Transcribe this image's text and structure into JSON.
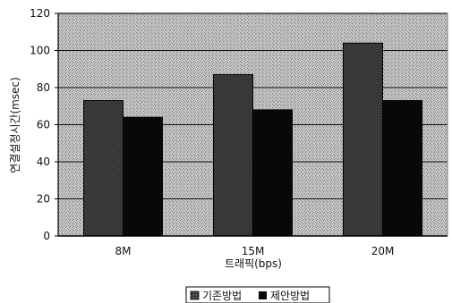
{
  "chart_data": {
    "type": "bar",
    "categories": [
      "8M",
      "15M",
      "20M"
    ],
    "series": [
      {
        "name": "기존방법",
        "values": [
          73,
          87,
          104
        ],
        "pattern": "stipple-dark"
      },
      {
        "name": "제안방법",
        "values": [
          64,
          68,
          73
        ],
        "pattern": "solid-black"
      }
    ],
    "xlabel": "트래픽(bps)",
    "ylabel": "연결설정시간(msec)",
    "ylim": [
      0,
      120
    ],
    "yticks": [
      0,
      20,
      40,
      60,
      80,
      100,
      120
    ],
    "grid": true,
    "legend_position": "bottom",
    "plot_background": "stippled-gray"
  },
  "colors": {
    "series_dark": "#2a2a2a",
    "series_black": "#080808",
    "gridline": "#111111",
    "plot_bg_base": "#b8b8b8"
  }
}
